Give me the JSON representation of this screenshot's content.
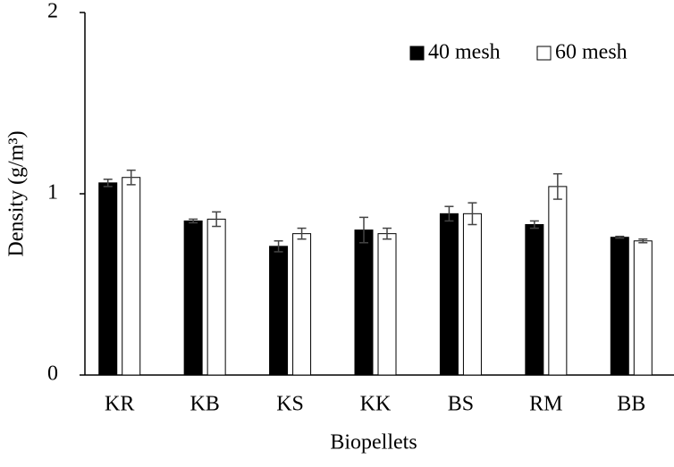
{
  "chart_data": {
    "type": "bar",
    "x_label": "Biopellets",
    "y_label": "Density (g/m³)",
    "categories": [
      "KR",
      "KB",
      "KS",
      "KK",
      "BS",
      "RM",
      "BB"
    ],
    "series": [
      {
        "name": "40 mesh",
        "color": "#000000",
        "values": [
          1.06,
          0.85,
          0.71,
          0.8,
          0.89,
          0.83,
          0.76
        ],
        "errors": [
          0.02,
          0.01,
          0.03,
          0.07,
          0.04,
          0.02,
          0.005
        ]
      },
      {
        "name": "60 mesh",
        "color": "#ffffff",
        "values": [
          1.09,
          0.86,
          0.78,
          0.78,
          0.89,
          1.04,
          0.74
        ],
        "errors": [
          0.04,
          0.04,
          0.03,
          0.03,
          0.06,
          0.07,
          0.01
        ]
      }
    ],
    "ylim": [
      0,
      2
    ],
    "yticks": [
      0,
      1,
      2
    ],
    "grid": false,
    "legend": "top-right"
  }
}
